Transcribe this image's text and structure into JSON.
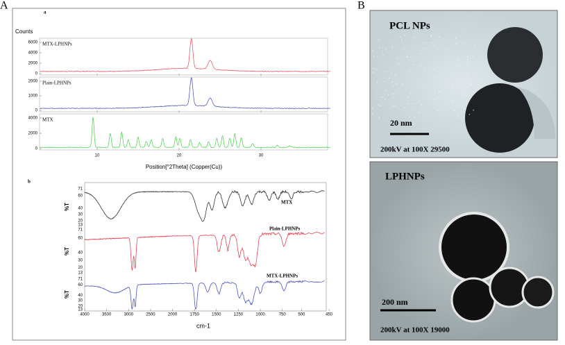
{
  "panel_a": {
    "label": "A",
    "xrd": {
      "label": "a",
      "y_label": "Counts",
      "x_label": "Position[°2Theta] (Copper(Cu))",
      "x_ticks": [
        "10",
        "20",
        "30"
      ],
      "plots": [
        {
          "name": "MTX-LPHNPs",
          "y_ticks": [
            "6000",
            "4000",
            "2000",
            "0"
          ]
        },
        {
          "name": "Plain-LPHNPs",
          "y_ticks": [
            "2000",
            "1000",
            "0"
          ]
        },
        {
          "name": "MTX",
          "y_ticks": [
            "4000",
            "2000",
            "0"
          ]
        }
      ]
    },
    "ftir": {
      "label": "b",
      "x_label": "cm-1",
      "x_ticks": [
        "4000",
        "3500",
        "3000",
        "2500",
        "2000",
        "1750",
        "1500",
        "1250",
        "1000",
        "750",
        "500",
        "450"
      ],
      "plots": [
        {
          "name": "MTX",
          "y_label": "%T",
          "y_ticks": [
            "71",
            "60",
            "40",
            "30",
            "20",
            "13"
          ]
        },
        {
          "name": "Plain-LPHNPs",
          "y_label": "%T",
          "y_ticks": [
            "71",
            "60",
            "40",
            "30",
            "20",
            "13"
          ]
        },
        {
          "name": "MTX-LPHNPs",
          "y_label": "%T",
          "y_ticks": [
            "71",
            "60",
            "40",
            "30",
            "20",
            "13"
          ]
        }
      ]
    }
  },
  "panel_b": {
    "label": "B",
    "images": [
      {
        "title": "PCL NPs",
        "scale_bar": "20 nm",
        "caption": "200kV at 100X 29500"
      },
      {
        "title": "LPHNPs",
        "scale_bar": "200 nm",
        "caption": "200kV at 100X 19000"
      }
    ]
  }
}
